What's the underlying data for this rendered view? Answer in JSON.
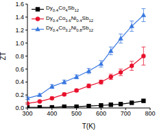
{
  "chart_data": {
    "type": "line",
    "x_label": "T(K)",
    "y_label": "ZT",
    "x": [
      300,
      350,
      400,
      450,
      500,
      550,
      600,
      640,
      680,
      725,
      773
    ],
    "xlim": [
      300,
      800
    ],
    "xticks": [
      300,
      400,
      500,
      600,
      700,
      800
    ],
    "ylim": [
      0,
      1.6
    ],
    "yticks": [
      {
        "value": 0,
        "label": "0.0"
      },
      0.2,
      0.4,
      0.6,
      0.8,
      {
        "value": 1,
        "label": "1.0"
      },
      1.2,
      1.4,
      1.6
    ],
    "legend": "upper left",
    "series": [
      {
        "name": "Dy0.4Co4Sb12",
        "color": "#000000",
        "marker": "square",
        "values": [
          0.01,
          0.01,
          0.01,
          0.02,
          0.02,
          0.03,
          0.04,
          0.05,
          0.06,
          0.08,
          0.11
        ]
      },
      {
        "name": "Dy0.4Co3.6Ni0.4Sb12",
        "color": "#e8112d",
        "marker": "circle",
        "values": [
          0.07,
          0.1,
          0.15,
          0.21,
          0.27,
          0.34,
          0.4,
          0.48,
          0.55,
          0.65,
          0.8
        ],
        "errors": [
          0.01,
          0.01,
          0.02,
          0.02,
          0.02,
          0.03,
          0.03,
          0.04,
          0.05,
          0.07,
          0.14
        ]
      },
      {
        "name": "Dy0.4Co3.2Ni0.8Sb12",
        "color": "#3a78e0",
        "marker": "triangle",
        "values": [
          0.15,
          0.2,
          0.33,
          0.4,
          0.48,
          0.57,
          0.68,
          0.88,
          1.07,
          1.26,
          1.43
        ],
        "errors": [
          0.02,
          0.02,
          0.03,
          0.03,
          0.03,
          0.04,
          0.05,
          0.06,
          0.07,
          0.08,
          0.1
        ]
      }
    ]
  }
}
